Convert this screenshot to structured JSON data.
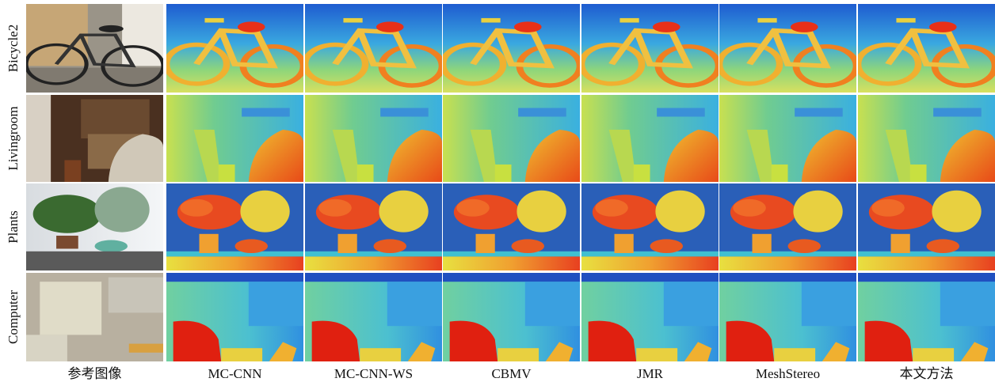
{
  "row_labels": [
    "Bicycle2",
    "Livingroom",
    "Plants",
    "Computer"
  ],
  "column_labels": [
    "参考图像",
    "MC-CNN",
    "MC-CNN-WS",
    "CBMV",
    "JMR",
    "MeshStereo",
    "本文方法"
  ]
}
